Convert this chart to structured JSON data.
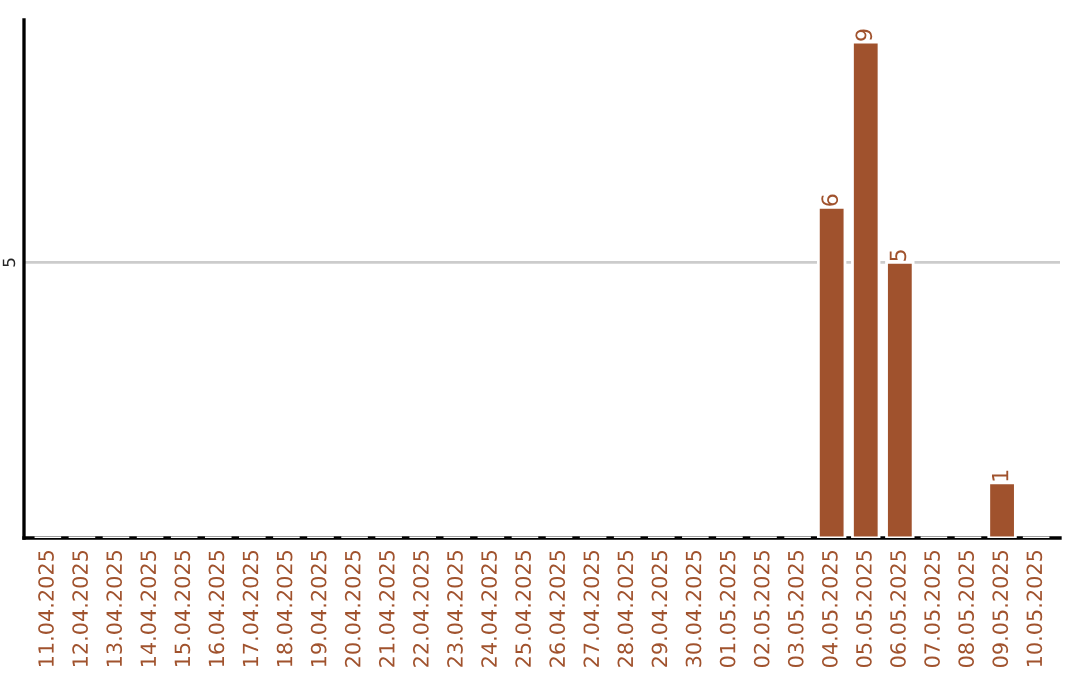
{
  "chart_data": {
    "type": "bar",
    "categories": [
      "11.04.2025",
      "12.04.2025",
      "13.04.2025",
      "14.04.2025",
      "15.04.2025",
      "16.04.2025",
      "17.04.2025",
      "18.04.2025",
      "19.04.2025",
      "20.04.2025",
      "21.04.2025",
      "22.04.2025",
      "23.04.2025",
      "24.04.2025",
      "25.04.2025",
      "26.04.2025",
      "27.04.2025",
      "28.04.2025",
      "29.04.2025",
      "30.04.2025",
      "01.05.2025",
      "02.05.2025",
      "03.05.2025",
      "04.05.2025",
      "05.05.2025",
      "06.05.2025",
      "07.05.2025",
      "08.05.2025",
      "09.05.2025",
      "10.05.2025"
    ],
    "values": [
      null,
      null,
      null,
      null,
      null,
      null,
      null,
      null,
      null,
      null,
      null,
      null,
      null,
      null,
      null,
      null,
      null,
      null,
      null,
      null,
      null,
      null,
      null,
      6,
      9,
      5,
      null,
      null,
      1,
      null
    ],
    "color": "#a0522d",
    "ylim": [
      0,
      9.4
    ],
    "yticks": [
      5
    ],
    "grid": "y",
    "data_labels": true
  }
}
